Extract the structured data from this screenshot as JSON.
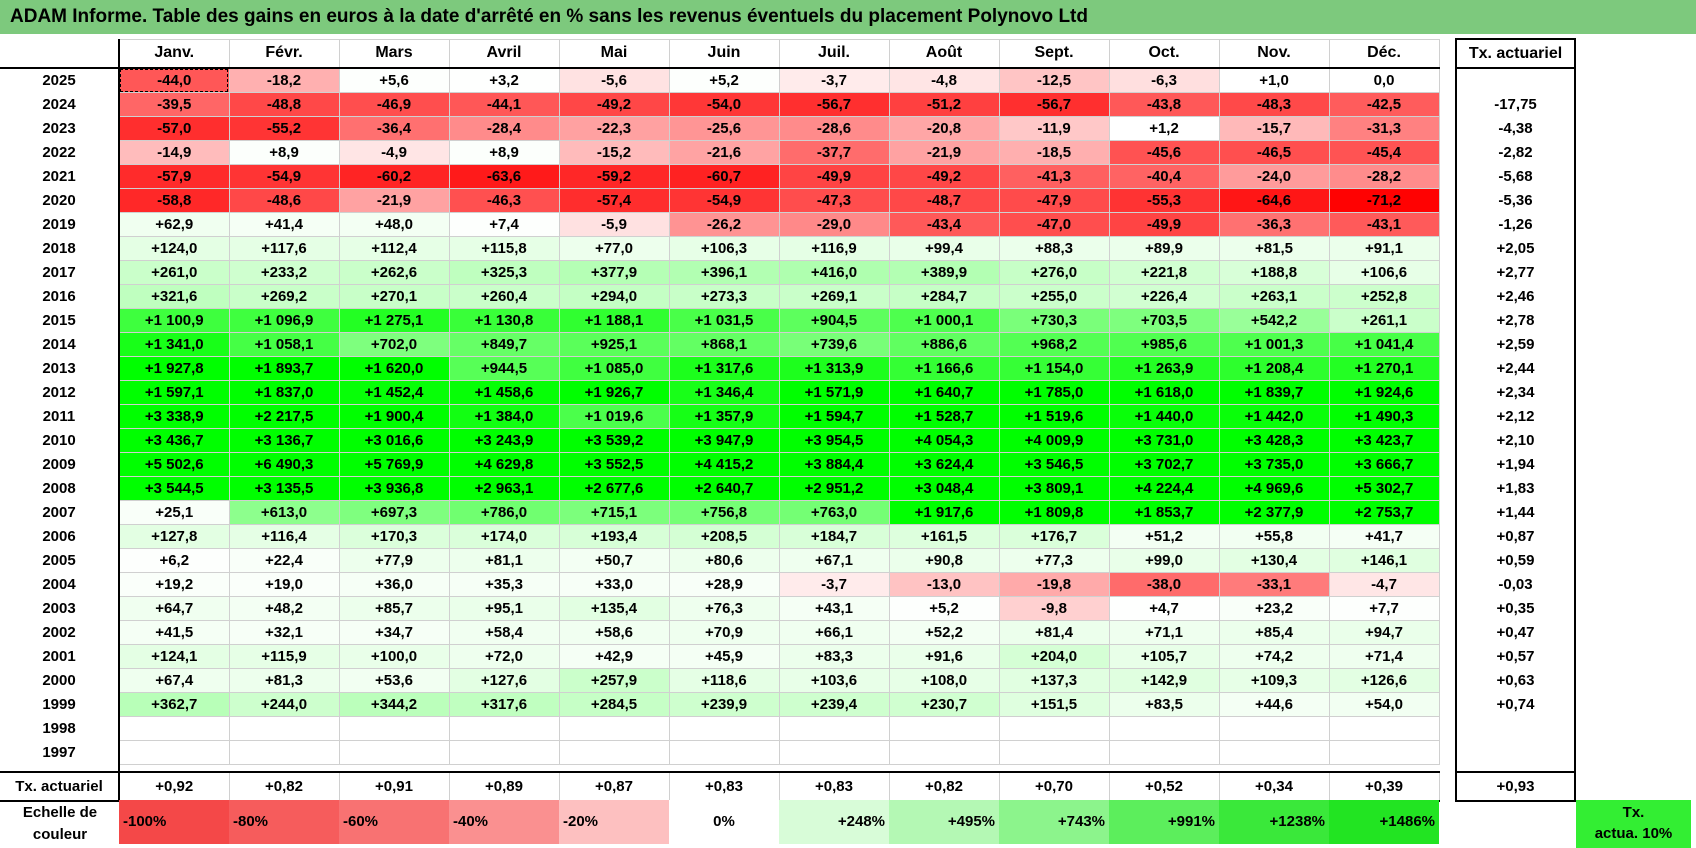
{
  "title": "ADAM Informe. Table des gains en euros à la date d'arrêté en % sans les revenus éventuels du placement Polynovo Ltd",
  "chart_data": {
    "type": "heatmap",
    "title": "ADAM Informe. Table des gains en euros à la date d'arrêté en % sans les revenus éventuels du placement Polynovo Ltd",
    "columns": [
      "Janv.",
      "Févr.",
      "Mars",
      "Avril",
      "Mai",
      "Juin",
      "Juil.",
      "Août",
      "Sept.",
      "Oct.",
      "Nov.",
      "Déc."
    ],
    "tx_header": "Tx. actuariel",
    "rows": [
      {
        "year": "2025",
        "values": [
          "-44,0",
          "-18,2",
          "+5,6",
          "+3,2",
          "-5,6",
          "+5,2",
          "-3,7",
          "-4,8",
          "-12,5",
          "-6,3",
          "+1,0",
          "0,0"
        ],
        "tx": ""
      },
      {
        "year": "2024",
        "values": [
          "-39,5",
          "-48,8",
          "-46,9",
          "-44,1",
          "-49,2",
          "-54,0",
          "-56,7",
          "-51,2",
          "-56,7",
          "-43,8",
          "-48,3",
          "-42,5"
        ],
        "tx": "-17,75"
      },
      {
        "year": "2023",
        "values": [
          "-57,0",
          "-55,2",
          "-36,4",
          "-28,4",
          "-22,3",
          "-25,6",
          "-28,6",
          "-20,8",
          "-11,9",
          "+1,2",
          "-15,7",
          "-31,3"
        ],
        "tx": "-4,38"
      },
      {
        "year": "2022",
        "values": [
          "-14,9",
          "+8,9",
          "-4,9",
          "+8,9",
          "-15,2",
          "-21,6",
          "-37,7",
          "-21,9",
          "-18,5",
          "-45,6",
          "-46,5",
          "-45,4"
        ],
        "tx": "-2,82"
      },
      {
        "year": "2021",
        "values": [
          "-57,9",
          "-54,9",
          "-60,2",
          "-63,6",
          "-59,2",
          "-60,7",
          "-49,9",
          "-49,2",
          "-41,3",
          "-40,4",
          "-24,0",
          "-28,2"
        ],
        "tx": "-5,68"
      },
      {
        "year": "2020",
        "values": [
          "-58,8",
          "-48,6",
          "-21,9",
          "-46,3",
          "-57,4",
          "-54,9",
          "-47,3",
          "-48,7",
          "-47,9",
          "-55,3",
          "-64,6",
          "-71,2"
        ],
        "tx": "-5,36"
      },
      {
        "year": "2019",
        "values": [
          "+62,9",
          "+41,4",
          "+48,0",
          "+7,4",
          "-5,9",
          "-26,2",
          "-29,0",
          "-43,4",
          "-47,0",
          "-49,9",
          "-36,3",
          "-43,1"
        ],
        "tx": "-1,26"
      },
      {
        "year": "2018",
        "values": [
          "+124,0",
          "+117,6",
          "+112,4",
          "+115,8",
          "+77,0",
          "+106,3",
          "+116,9",
          "+99,4",
          "+88,3",
          "+89,9",
          "+81,5",
          "+91,1"
        ],
        "tx": "+2,05"
      },
      {
        "year": "2017",
        "values": [
          "+261,0",
          "+233,2",
          "+262,6",
          "+325,3",
          "+377,9",
          "+396,1",
          "+416,0",
          "+389,9",
          "+276,0",
          "+221,8",
          "+188,8",
          "+106,6"
        ],
        "tx": "+2,77"
      },
      {
        "year": "2016",
        "values": [
          "+321,6",
          "+269,2",
          "+270,1",
          "+260,4",
          "+294,0",
          "+273,3",
          "+269,1",
          "+284,7",
          "+255,0",
          "+226,4",
          "+263,1",
          "+252,8"
        ],
        "tx": "+2,46"
      },
      {
        "year": "2015",
        "values": [
          "+1 100,9",
          "+1 096,9",
          "+1 275,1",
          "+1 130,8",
          "+1 188,1",
          "+1 031,5",
          "+904,5",
          "+1 000,1",
          "+730,3",
          "+703,5",
          "+542,2",
          "+261,1"
        ],
        "tx": "+2,78"
      },
      {
        "year": "2014",
        "values": [
          "+1 341,0",
          "+1 058,1",
          "+702,0",
          "+849,7",
          "+925,1",
          "+868,1",
          "+739,6",
          "+886,6",
          "+968,2",
          "+985,6",
          "+1 001,3",
          "+1 041,4"
        ],
        "tx": "+2,59"
      },
      {
        "year": "2013",
        "values": [
          "+1 927,8",
          "+1 893,7",
          "+1 620,0",
          "+944,5",
          "+1 085,0",
          "+1 317,6",
          "+1 313,9",
          "+1 166,6",
          "+1 154,0",
          "+1 263,9",
          "+1 208,4",
          "+1 270,1"
        ],
        "tx": "+2,44"
      },
      {
        "year": "2012",
        "values": [
          "+1 597,1",
          "+1 837,0",
          "+1 452,4",
          "+1 458,6",
          "+1 926,7",
          "+1 346,4",
          "+1 571,9",
          "+1 640,7",
          "+1 785,0",
          "+1 618,0",
          "+1 839,7",
          "+1 924,6"
        ],
        "tx": "+2,34"
      },
      {
        "year": "2011",
        "values": [
          "+3 338,9",
          "+2 217,5",
          "+1 900,4",
          "+1 384,0",
          "+1 019,6",
          "+1 357,9",
          "+1 594,7",
          "+1 528,7",
          "+1 519,6",
          "+1 440,0",
          "+1 442,0",
          "+1 490,3"
        ],
        "tx": "+2,12"
      },
      {
        "year": "2010",
        "values": [
          "+3 436,7",
          "+3 136,7",
          "+3 016,6",
          "+3 243,9",
          "+3 539,2",
          "+3 947,9",
          "+3 954,5",
          "+4 054,3",
          "+4 009,9",
          "+3 731,0",
          "+3 428,3",
          "+3 423,7"
        ],
        "tx": "+2,10"
      },
      {
        "year": "2009",
        "values": [
          "+5 502,6",
          "+6 490,3",
          "+5 769,9",
          "+4 629,8",
          "+3 552,5",
          "+4 415,2",
          "+3 884,4",
          "+3 624,4",
          "+3 546,5",
          "+3 702,7",
          "+3 735,0",
          "+3 666,7"
        ],
        "tx": "+1,94"
      },
      {
        "year": "2008",
        "values": [
          "+3 544,5",
          "+3 135,5",
          "+3 936,8",
          "+2 963,1",
          "+2 677,6",
          "+2 640,7",
          "+2 951,2",
          "+3 048,4",
          "+3 809,1",
          "+4 224,4",
          "+4 969,6",
          "+5 302,7"
        ],
        "tx": "+1,83"
      },
      {
        "year": "2007",
        "values": [
          "+25,1",
          "+613,0",
          "+697,3",
          "+786,0",
          "+715,1",
          "+756,8",
          "+763,0",
          "+1 917,6",
          "+1 809,8",
          "+1 853,7",
          "+2 377,9",
          "+2 753,7"
        ],
        "tx": "+1,44"
      },
      {
        "year": "2006",
        "values": [
          "+127,8",
          "+116,4",
          "+170,3",
          "+174,0",
          "+193,4",
          "+208,5",
          "+184,7",
          "+161,5",
          "+176,7",
          "+51,2",
          "+55,8",
          "+41,7"
        ],
        "tx": "+0,87"
      },
      {
        "year": "2005",
        "values": [
          "+6,2",
          "+22,4",
          "+77,9",
          "+81,1",
          "+50,7",
          "+80,6",
          "+67,1",
          "+90,8",
          "+77,3",
          "+99,0",
          "+130,4",
          "+146,1"
        ],
        "tx": "+0,59"
      },
      {
        "year": "2004",
        "values": [
          "+19,2",
          "+19,0",
          "+36,0",
          "+35,3",
          "+33,0",
          "+28,9",
          "-3,7",
          "-13,0",
          "-19,8",
          "-38,0",
          "-33,1",
          "-4,7"
        ],
        "tx": "-0,03"
      },
      {
        "year": "2003",
        "values": [
          "+64,7",
          "+48,2",
          "+85,7",
          "+95,1",
          "+135,4",
          "+76,3",
          "+43,1",
          "+5,2",
          "-9,8",
          "+4,7",
          "+23,2",
          "+7,7"
        ],
        "tx": "+0,35"
      },
      {
        "year": "2002",
        "values": [
          "+41,5",
          "+32,1",
          "+34,7",
          "+58,4",
          "+58,6",
          "+70,9",
          "+66,1",
          "+52,2",
          "+81,4",
          "+71,1",
          "+85,4",
          "+94,7"
        ],
        "tx": "+0,47"
      },
      {
        "year": "2001",
        "values": [
          "+124,1",
          "+115,9",
          "+100,0",
          "+72,0",
          "+42,9",
          "+45,9",
          "+83,3",
          "+91,6",
          "+204,0",
          "+105,7",
          "+74,2",
          "+71,4"
        ],
        "tx": "+0,57"
      },
      {
        "year": "2000",
        "values": [
          "+67,4",
          "+81,3",
          "+53,6",
          "+127,6",
          "+257,9",
          "+118,6",
          "+103,6",
          "+108,0",
          "+137,3",
          "+142,9",
          "+109,3",
          "+126,6"
        ],
        "tx": "+0,63"
      },
      {
        "year": "1999",
        "values": [
          "+362,7",
          "+244,0",
          "+344,2",
          "+317,6",
          "+284,5",
          "+239,9",
          "+239,4",
          "+230,7",
          "+151,5",
          "+83,5",
          "+44,6",
          "+54,0"
        ],
        "tx": "+0,74"
      },
      {
        "year": "1998",
        "values": [
          "",
          "",
          "",
          "",
          "",
          "",
          "",
          "",
          "",
          "",
          "",
          ""
        ],
        "tx": ""
      },
      {
        "year": "1997",
        "values": [
          "",
          "",
          "",
          "",
          "",
          "",
          "",
          "",
          "",
          "",
          "",
          ""
        ],
        "tx": ""
      }
    ],
    "summary_row": {
      "label": "Tx. actuariel",
      "values": [
        "+0,92",
        "+0,82",
        "+0,91",
        "+0,89",
        "+0,87",
        "+0,83",
        "+0,83",
        "+0,82",
        "+0,70",
        "+0,52",
        "+0,34",
        "+0,39"
      ],
      "tx": "+0,93"
    },
    "legend": {
      "label_line1": "Echelle de",
      "label_line2": "couleur",
      "steps": [
        {
          "label": "-100%",
          "color": "#f44848"
        },
        {
          "label": "-80%",
          "color": "#f65c5c"
        },
        {
          "label": "-60%",
          "color": "#f87272"
        },
        {
          "label": "-40%",
          "color": "#fa9090"
        },
        {
          "label": "-20%",
          "color": "#fdc0c0"
        },
        {
          "label": "0%",
          "color": "#ffffff"
        },
        {
          "label": "+248%",
          "color": "#d8fcd8"
        },
        {
          "label": "+495%",
          "color": "#b4f8b4"
        },
        {
          "label": "+743%",
          "color": "#8cf48c"
        },
        {
          "label": "+991%",
          "color": "#5cee5c"
        },
        {
          "label": "+1238%",
          "color": "#3ae83a"
        },
        {
          "label": "+1486%",
          "color": "#22e422"
        }
      ],
      "tx_line1": "Tx.",
      "tx_line2": "actua. 10%"
    }
  },
  "colors": {
    "title_bar": "#7dc97d",
    "negative_max": "#ff0000",
    "positive_max": "#00ff00",
    "tx_legend": "#33ee33"
  }
}
